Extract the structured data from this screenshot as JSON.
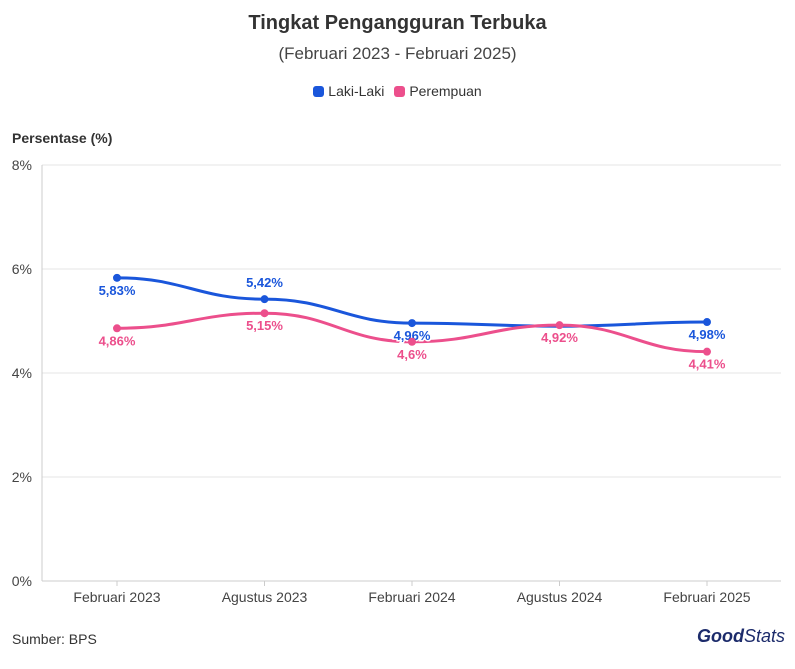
{
  "title": "Tingkat Pengangguran Terbuka",
  "subtitle": "(Februari 2023 - Februari 2025)",
  "colors": {
    "laki": "#1a56db",
    "perempuan": "#ec4f8c",
    "grid": "#e6e6e6",
    "axis": "#cccccc"
  },
  "legend": {
    "items": [
      {
        "label": "Laki-Laki"
      },
      {
        "label": "Perempuan"
      }
    ]
  },
  "source": "Sumber: BPS",
  "logo": {
    "good": "Good",
    "stats": "Stats"
  },
  "chart_data": {
    "type": "line",
    "title": "Tingkat Pengangguran Terbuka",
    "subtitle": "(Februari 2023 - Februari 2025)",
    "xlabel": "",
    "ylabel": "Persentase (%)",
    "categories": [
      "Februari 2023",
      "Agustus 2023",
      "Februari 2024",
      "Agustus 2024",
      "Februari 2025"
    ],
    "ylim": [
      0,
      8
    ],
    "yticks": [
      0,
      2,
      4,
      6,
      8
    ],
    "ytick_labels": [
      "0%",
      "2%",
      "4%",
      "6%",
      "8%"
    ],
    "grid": true,
    "legend_position": "top-center",
    "series": [
      {
        "name": "Laki-Laki",
        "color": "#1a56db",
        "values": [
          5.83,
          5.42,
          4.96,
          4.9,
          4.98
        ],
        "labels": [
          "5,83%",
          "5,42%",
          "4,96%",
          "",
          "4,98%"
        ]
      },
      {
        "name": "Perempuan",
        "color": "#ec4f8c",
        "values": [
          4.86,
          5.15,
          4.6,
          4.92,
          4.41
        ],
        "labels": [
          "4,86%",
          "5,15%",
          "4,6%",
          "4,92%",
          "4,41%"
        ]
      }
    ]
  }
}
